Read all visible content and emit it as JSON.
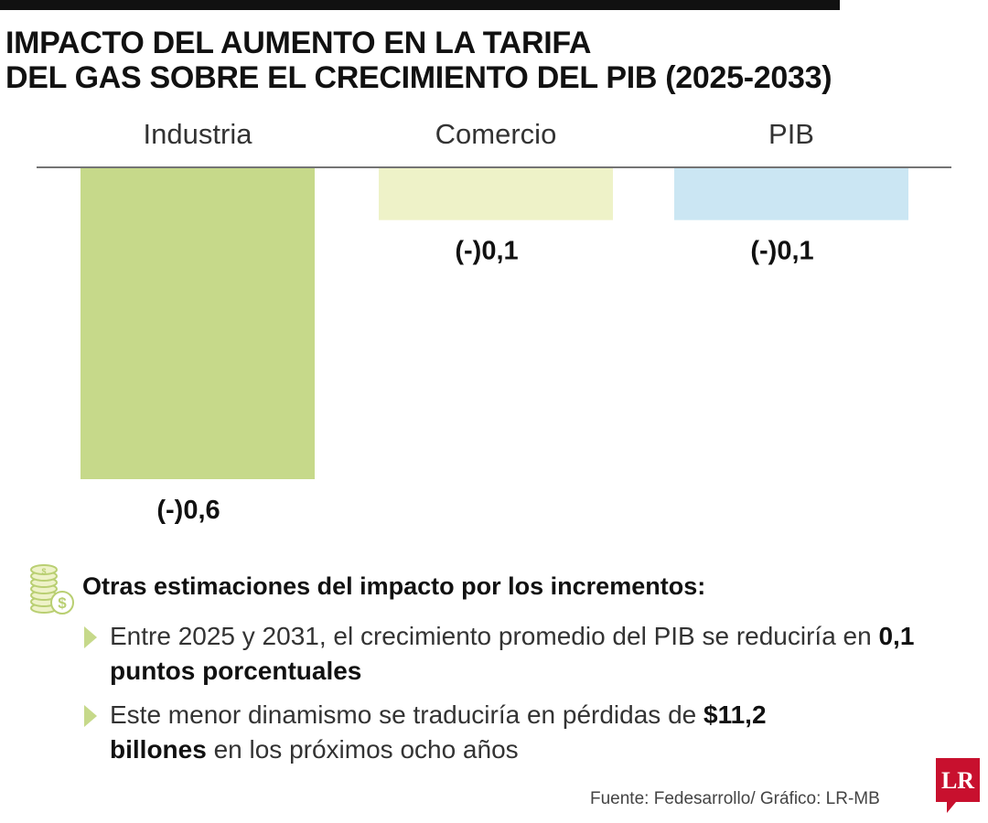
{
  "header": {
    "title_line1": "IMPACTO DEL AUMENTO EN LA TARIFA",
    "title_line2": "DEL GAS SOBRE EL CRECIMIENTO DEL PIB (2025-2033)"
  },
  "chart_data": {
    "type": "bar",
    "orientation": "vertical-downward",
    "categories": [
      "Industria",
      "Comercio",
      "PIB"
    ],
    "values": [
      -0.6,
      -0.1,
      -0.1
    ],
    "value_labels": [
      "(-)0,6",
      "(-)0,1",
      "(-)0,1"
    ],
    "colors": [
      "#c6d98a",
      "#eef2c8",
      "#cbe6f3"
    ],
    "ylim": [
      -0.6,
      0
    ],
    "grid": false,
    "baseline": true
  },
  "notes": {
    "icon": "coins-icon",
    "heading": "Otras estimaciones del impacto por los incrementos:",
    "bullets": [
      {
        "before": "Entre 2025 y 2031, el crecimiento promedio del PIB se reduciría en ",
        "bold": "0,1 puntos porcentuales",
        "after": ""
      },
      {
        "before": "Este menor dinamismo se traduciría en pérdidas de ",
        "bold": "$11,2 billones",
        "after": " en los próximos ocho años"
      }
    ]
  },
  "footer": {
    "source": "Fuente: Fedesarrollo/ Gráfico: LR-MB",
    "logo_text": "LR",
    "logo_color": "#c8102e"
  }
}
